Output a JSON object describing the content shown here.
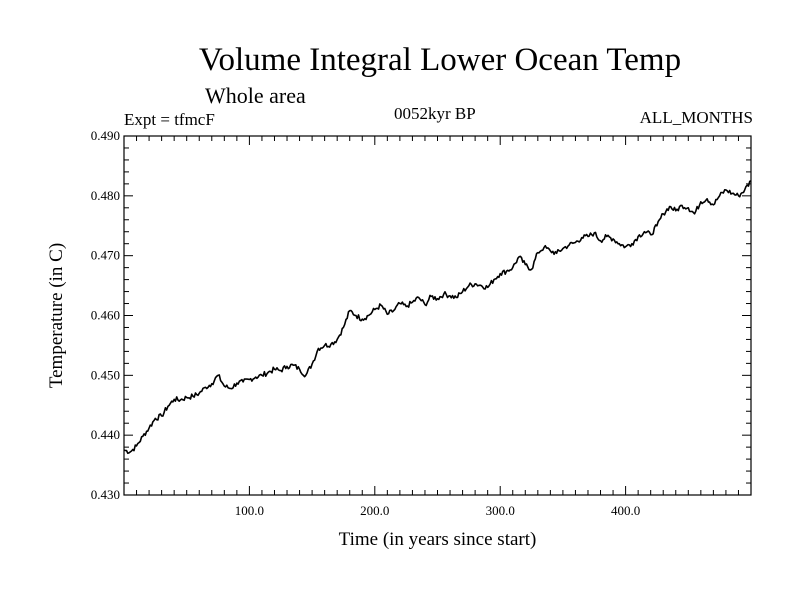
{
  "chart_data": {
    "type": "line",
    "title": "Volume Integral Lower Ocean Temp",
    "subtitle": "Whole area",
    "annotations": {
      "experiment": "Expt = tfmcF",
      "period": "0052kyr BP",
      "months": "ALL_MONTHS"
    },
    "xlabel": "Time (in years since start)",
    "ylabel": "Temperature (in C)",
    "xlim": [
      0,
      500
    ],
    "ylim": [
      0.43,
      0.49
    ],
    "xticks": [
      100,
      200,
      300,
      400
    ],
    "xtick_labels": [
      "100.0",
      "200.0",
      "300.0",
      "400.0"
    ],
    "yticks": [
      0.43,
      0.44,
      0.45,
      0.46,
      0.47,
      0.48,
      0.49
    ],
    "ytick_labels": [
      "0.430",
      "0.440",
      "0.450",
      "0.460",
      "0.470",
      "0.480",
      "0.490"
    ],
    "grid": false,
    "legend": "none",
    "color": "#000000",
    "series": [
      {
        "x": [
          0,
          5,
          10,
          15,
          20,
          25,
          30,
          35,
          40,
          45,
          50,
          55,
          60,
          65,
          70,
          75,
          80,
          85,
          90,
          95,
          100,
          105,
          110,
          115,
          120,
          125,
          130,
          135,
          140,
          145,
          150,
          155,
          160,
          165,
          170,
          175,
          180,
          185,
          190,
          195,
          200,
          205,
          210,
          215,
          220,
          225,
          230,
          235,
          240,
          245,
          250,
          255,
          260,
          265,
          270,
          275,
          280,
          285,
          290,
          295,
          300,
          305,
          310,
          315,
          320,
          325,
          330,
          335,
          340,
          345,
          350,
          355,
          360,
          365,
          370,
          375,
          380,
          385,
          390,
          395,
          400,
          405,
          410,
          415,
          420,
          425,
          430,
          435,
          440,
          445,
          450,
          455,
          460,
          465,
          470,
          475,
          480,
          485,
          490,
          495,
          500
        ],
        "values": [
          0.4375,
          0.4372,
          0.4382,
          0.4398,
          0.4412,
          0.4428,
          0.4432,
          0.4448,
          0.446,
          0.4459,
          0.4463,
          0.4465,
          0.447,
          0.448,
          0.4486,
          0.45,
          0.4482,
          0.4478,
          0.4487,
          0.4489,
          0.4493,
          0.4497,
          0.45,
          0.4505,
          0.451,
          0.4508,
          0.4515,
          0.4517,
          0.451,
          0.45,
          0.4519,
          0.4545,
          0.455,
          0.4552,
          0.456,
          0.458,
          0.4608,
          0.46,
          0.4594,
          0.46,
          0.461,
          0.4617,
          0.4602,
          0.4608,
          0.462,
          0.4615,
          0.4622,
          0.463,
          0.4618,
          0.4632,
          0.4628,
          0.4636,
          0.4633,
          0.463,
          0.464,
          0.465,
          0.4653,
          0.465,
          0.4647,
          0.466,
          0.467,
          0.4674,
          0.468,
          0.4698,
          0.4685,
          0.4677,
          0.4705,
          0.4714,
          0.4708,
          0.4704,
          0.4712,
          0.4718,
          0.4722,
          0.473,
          0.4732,
          0.4738,
          0.4725,
          0.4732,
          0.4728,
          0.472,
          0.4715,
          0.472,
          0.4732,
          0.474,
          0.4735,
          0.475,
          0.477,
          0.4782,
          0.4775,
          0.4784,
          0.478,
          0.477,
          0.479,
          0.4795,
          0.4785,
          0.48,
          0.481,
          0.4804,
          0.48,
          0.481,
          0.4825
        ]
      }
    ]
  }
}
